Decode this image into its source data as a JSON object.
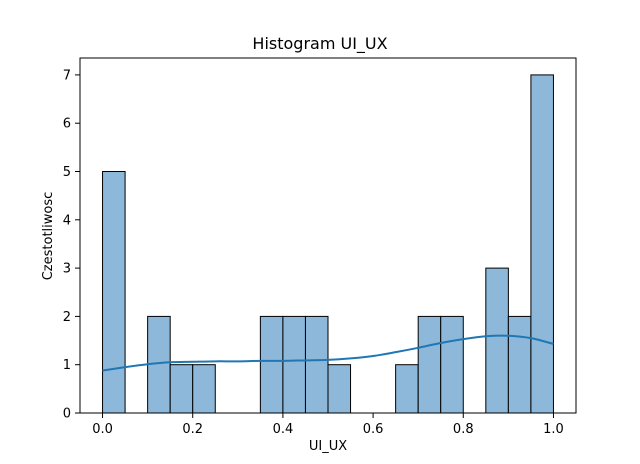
{
  "chart_data": {
    "type": "bar",
    "subtype": "histogram",
    "title": "Histogram UI_UX",
    "xlabel": "UI_UX",
    "ylabel": "Czestotliwosc",
    "bin_edges": [
      0.0,
      0.05,
      0.1,
      0.15,
      0.2,
      0.25,
      0.3,
      0.35,
      0.4,
      0.45,
      0.5,
      0.55,
      0.6,
      0.65,
      0.7,
      0.75,
      0.8,
      0.85,
      0.9,
      0.95,
      1.0
    ],
    "counts": [
      5,
      0,
      2,
      1,
      1,
      0,
      0,
      2,
      2,
      2,
      1,
      0,
      0,
      1,
      2,
      2,
      0,
      3,
      2,
      7
    ],
    "kde": {
      "x": [
        0.0,
        0.05,
        0.1,
        0.15,
        0.2,
        0.25,
        0.3,
        0.35,
        0.4,
        0.45,
        0.5,
        0.55,
        0.6,
        0.65,
        0.7,
        0.75,
        0.8,
        0.85,
        0.9,
        0.95,
        1.0
      ],
      "y": [
        0.88,
        0.95,
        1.01,
        1.05,
        1.06,
        1.07,
        1.07,
        1.08,
        1.08,
        1.09,
        1.1,
        1.13,
        1.18,
        1.26,
        1.35,
        1.45,
        1.53,
        1.59,
        1.6,
        1.55,
        1.43
      ]
    },
    "xlim": [
      -0.05,
      1.05
    ],
    "ylim": [
      0,
      7.35
    ],
    "xticks": [
      "0.0",
      "0.2",
      "0.4",
      "0.6",
      "0.8",
      "1.0"
    ],
    "xtick_values": [
      0.0,
      0.2,
      0.4,
      0.6,
      0.8,
      1.0
    ],
    "yticks": [
      "0",
      "1",
      "2",
      "3",
      "4",
      "5",
      "6",
      "7"
    ],
    "ytick_values": [
      0,
      1,
      2,
      3,
      4,
      5,
      6,
      7
    ],
    "bar_color": "#8db8d9",
    "bar_edge_color": "#000000",
    "kde_color": "#1f77b4",
    "grid": false
  }
}
